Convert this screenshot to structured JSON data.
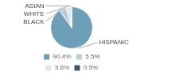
{
  "chart_data": {
    "type": "pie",
    "categories": [
      "HISPANIC",
      "BLACK",
      "WHITE",
      "ASIAN"
    ],
    "values": [
      90.4,
      5.5,
      3.6,
      0.5
    ],
    "value_labels": [
      "90.4%",
      "5.5%",
      "3.6%",
      "0.5%"
    ],
    "colors": [
      "#6f9eb8",
      "#b8cdd8",
      "#dde8ee",
      "#3a5a78"
    ],
    "legend": "bottom"
  }
}
